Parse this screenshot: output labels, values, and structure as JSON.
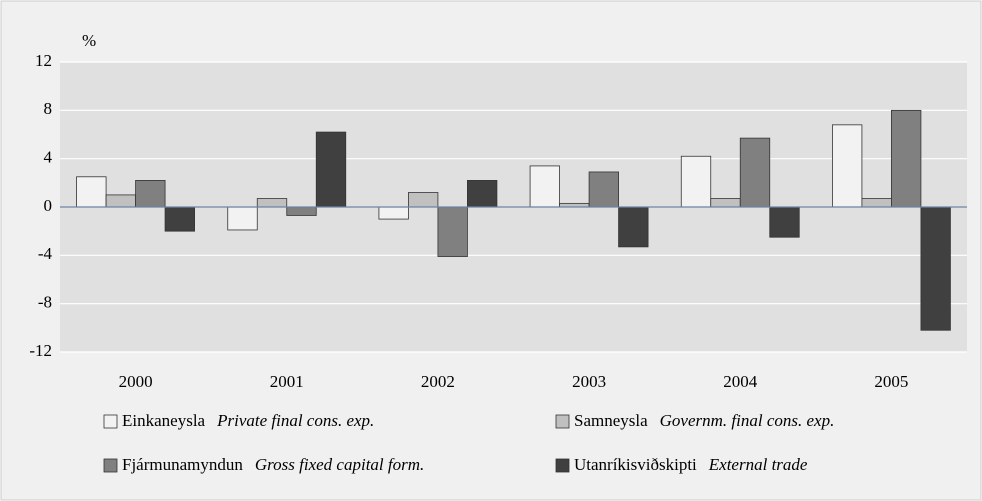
{
  "chart_data": {
    "type": "bar",
    "y_label": "%",
    "categories": [
      "2000",
      "2001",
      "2002",
      "2003",
      "2004",
      "2005"
    ],
    "series": [
      {
        "name": "Einkaneysla",
        "description": "Private final cons. exp.",
        "color": "#f2f2f2",
        "values": [
          2.5,
          -1.9,
          -1.0,
          3.4,
          4.2,
          6.8
        ]
      },
      {
        "name": "Samneysla",
        "description": "Governm. final cons. exp.",
        "color": "#c0c0c0",
        "values": [
          1.0,
          0.7,
          1.2,
          0.3,
          0.7,
          0.7
        ]
      },
      {
        "name": "Fjármunamyndun",
        "description": "Gross fixed capital form.",
        "color": "#808080",
        "values": [
          2.2,
          -0.7,
          -4.1,
          2.9,
          5.7,
          8.0
        ]
      },
      {
        "name": "Utanríkisviðskipti",
        "description": "External trade",
        "color": "#404040",
        "values": [
          -2.0,
          6.2,
          2.2,
          -3.3,
          -2.5,
          -10.2
        ]
      }
    ],
    "ylim": [
      -12,
      12
    ],
    "yticks": [
      -12,
      -8,
      -4,
      0,
      4,
      8,
      12
    ],
    "grid": true
  }
}
